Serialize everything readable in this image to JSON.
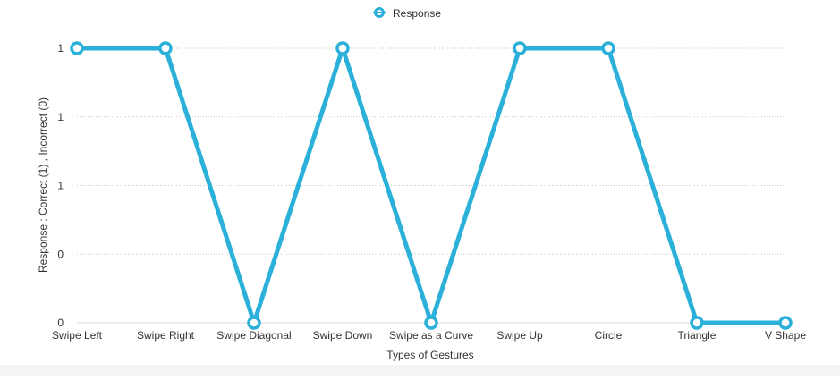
{
  "chart_data": {
    "type": "line",
    "title": "",
    "xlabel": "Types of Gestures",
    "ylabel": "Response : Correct (1) , Incorrect (0)",
    "categories": [
      "Swipe Left",
      "Swipe Right",
      "Swipe Diagonal",
      "Swipe Down",
      "Swipe as a Curve",
      "Swipe Up",
      "Circle",
      "Triangle",
      "V Shape"
    ],
    "series": [
      {
        "name": "Response",
        "values": [
          1,
          1,
          0,
          1,
          0,
          1,
          1,
          0,
          0
        ],
        "color": "#2bb0d9"
      }
    ],
    "ylim": [
      0,
      1
    ],
    "y_ticks": [
      0,
      0.25,
      0.5,
      0.75,
      1
    ],
    "y_tick_labels": [
      "0",
      "0",
      "1",
      "1",
      "1"
    ],
    "grid": true,
    "grid_style": "dotted",
    "legend_position": "top-center"
  },
  "colors": {
    "series": "#2bb0d9",
    "grid": "#c8c8c8",
    "axis_text": "#333333",
    "background": "#ffffff"
  }
}
